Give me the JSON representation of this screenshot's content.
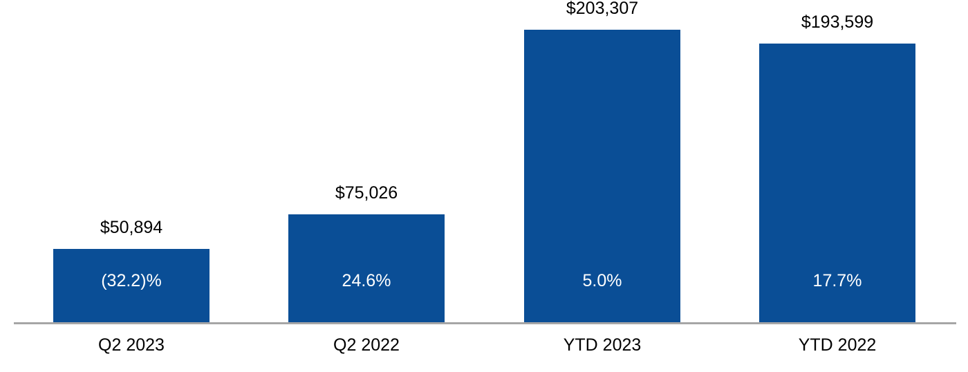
{
  "chart_data": {
    "type": "bar",
    "title": "",
    "xlabel": "",
    "ylabel": "",
    "categories": [
      "Q2 2023",
      "Q2 2022",
      "YTD 2023",
      "YTD 2022"
    ],
    "values": [
      50894,
      75026,
      203307,
      193599
    ],
    "value_labels": [
      "$50,894",
      "$75,026",
      "$203,307",
      "$193,599"
    ],
    "pct_labels": [
      "(32.2)%",
      "24.6%",
      "5.0%",
      "17.7%"
    ],
    "ylim": [
      0,
      210000
    ],
    "grid": false,
    "legend": "none",
    "colors": {
      "bar": "#0a4e96",
      "axis_line": "#a6a6a6",
      "value_label": "#000000",
      "pct_label": "#ffffff",
      "background": "#ffffff"
    }
  }
}
